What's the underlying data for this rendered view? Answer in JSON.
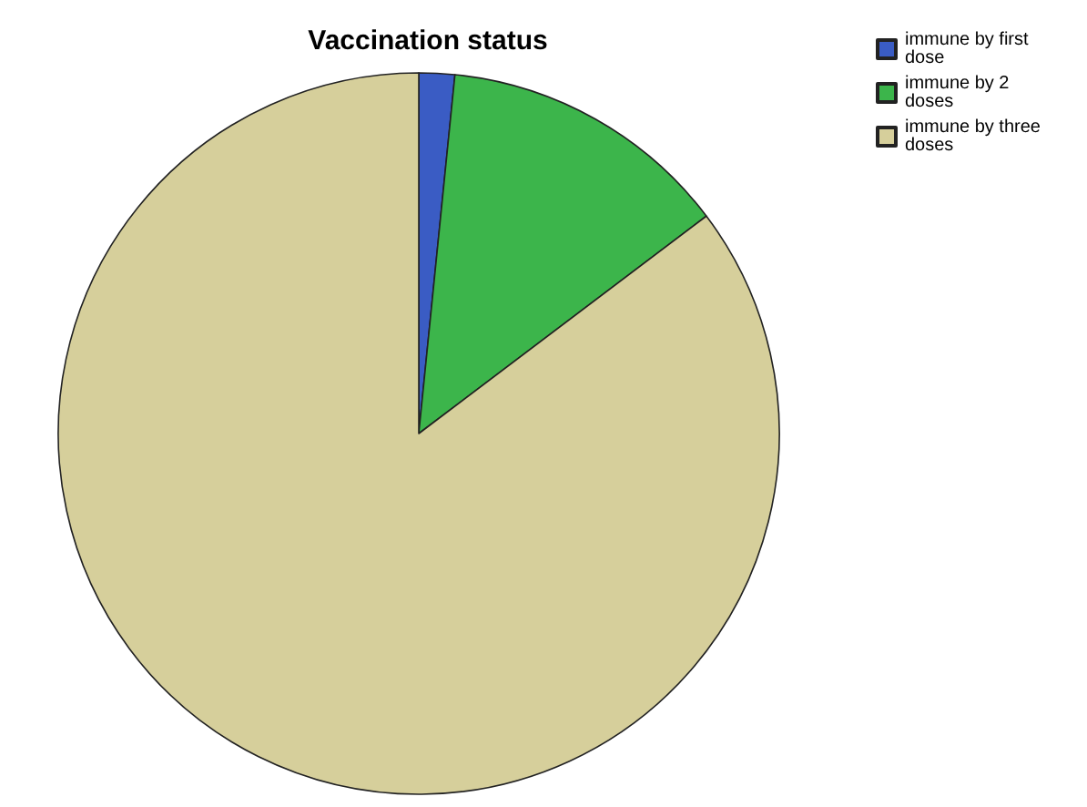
{
  "chart_data": {
    "type": "pie",
    "title": "Vaccination status",
    "categories": [
      "immune by first dose",
      "immune by 2 doses",
      "immune by three doses"
    ],
    "values": [
      1.6,
      13.1,
      85.3
    ],
    "colors": [
      "#3a5cc4",
      "#3cb54b",
      "#d6cf9b"
    ],
    "legend": "top right"
  }
}
